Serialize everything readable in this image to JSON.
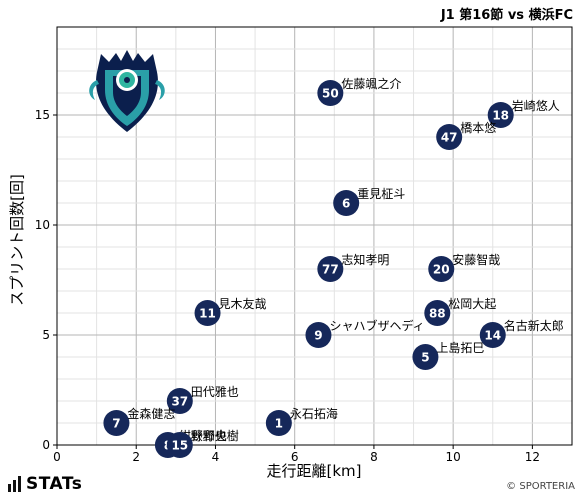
{
  "header": {
    "title": "J1 第16節 vs 横浜FC"
  },
  "footer": {
    "brand": "STATs",
    "credit": "© SPORTERIA"
  },
  "colors": {
    "marker": "#16285a",
    "marker_text": "#ffffff",
    "grid": "#cccccc",
    "axis": "#000000"
  },
  "chart_data": {
    "type": "scatter",
    "title": "J1 第16節 vs 横浜FC",
    "xlabel": "走行距離[km]",
    "ylabel": "スプリント回数[回]",
    "xlim": [
      0,
      13
    ],
    "ylim": [
      0,
      19
    ],
    "xticks": [
      0,
      2,
      4,
      6,
      8,
      10,
      12
    ],
    "yticks": [
      0,
      5,
      10,
      15
    ],
    "grid": true,
    "points": [
      {
        "number": "50",
        "name": "佐藤颯之介",
        "x": 6.9,
        "y": 16.0
      },
      {
        "number": "18",
        "name": "岩崎悠人",
        "x": 11.2,
        "y": 15.0
      },
      {
        "number": "47",
        "name": "橋本悠",
        "x": 9.9,
        "y": 14.0
      },
      {
        "number": "6",
        "name": "重見柾斗",
        "x": 7.3,
        "y": 11.0
      },
      {
        "number": "77",
        "name": "志知孝明",
        "x": 6.9,
        "y": 8.0
      },
      {
        "number": "20",
        "name": "安藤智哉",
        "x": 9.7,
        "y": 8.0
      },
      {
        "number": "11",
        "name": "見木友哉",
        "x": 3.8,
        "y": 6.0
      },
      {
        "number": "88",
        "name": "松岡大起",
        "x": 9.6,
        "y": 6.0
      },
      {
        "number": "9",
        "name": "シャハブザヘディ",
        "x": 6.6,
        "y": 5.0
      },
      {
        "number": "14",
        "name": "名古新太郎",
        "x": 11.0,
        "y": 5.0
      },
      {
        "number": "5",
        "name": "上島拓巳",
        "x": 9.3,
        "y": 4.0
      },
      {
        "number": "37",
        "name": "田代雅也",
        "x": 3.1,
        "y": 2.0
      },
      {
        "number": "7",
        "name": "金森健志",
        "x": 1.5,
        "y": 1.0
      },
      {
        "number": "1",
        "name": "永石拓海",
        "x": 5.6,
        "y": 1.0
      },
      {
        "number": "8",
        "name": "紺野和也",
        "x": 2.8,
        "y": 0.0
      },
      {
        "number": "15",
        "name": "秋野央樹",
        "x": 3.1,
        "y": 0.0
      }
    ]
  }
}
